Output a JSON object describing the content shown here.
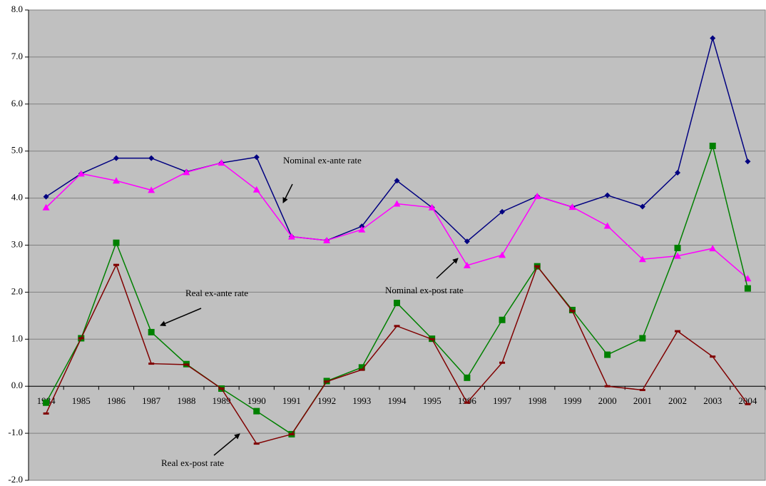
{
  "chart_data": {
    "type": "line",
    "categories": [
      "1984",
      "1985",
      "1986",
      "1987",
      "1988",
      "1989",
      "1990",
      "1991",
      "1992",
      "1993",
      "1994",
      "1995",
      "1996",
      "1997",
      "1998",
      "1999",
      "2000",
      "2001",
      "2002",
      "2003",
      "2004"
    ],
    "ylim": [
      -2,
      8
    ],
    "yticks": [
      {
        "value": -2,
        "label": "-2.0"
      },
      {
        "value": -1,
        "label": "-1.0"
      },
      {
        "value": 0,
        "label": "0.0"
      },
      {
        "value": 1,
        "label": "1.0"
      },
      {
        "value": 2,
        "label": "2.0"
      },
      {
        "value": 3,
        "label": "3.0"
      },
      {
        "value": 4,
        "label": "4.0"
      },
      {
        "value": 5,
        "label": "5.0"
      },
      {
        "value": 6,
        "label": "6.0"
      },
      {
        "value": 7,
        "label": "7.0"
      },
      {
        "value": 8,
        "label": "8.0"
      }
    ],
    "grid": true,
    "background": "#c0c0c0",
    "series": [
      {
        "name": "Nominal ex-ante rate",
        "color": "#000080",
        "marker": "diamond",
        "values": [
          4.03,
          4.52,
          4.85,
          4.85,
          4.56,
          4.75,
          4.87,
          3.18,
          3.1,
          3.4,
          4.37,
          3.8,
          3.08,
          3.71,
          4.04,
          3.81,
          4.06,
          3.82,
          4.54,
          7.4,
          4.78
        ]
      },
      {
        "name": "Nominal ex-post rate",
        "color": "#ff00ff",
        "marker": "triangle",
        "values": [
          3.8,
          4.52,
          4.37,
          4.17,
          4.55,
          4.75,
          4.18,
          3.18,
          3.1,
          3.33,
          3.88,
          3.8,
          2.57,
          2.79,
          4.04,
          3.81,
          3.41,
          2.7,
          2.77,
          2.93,
          2.29
        ]
      },
      {
        "name": "Real ex-ante rate",
        "color": "#008000",
        "marker": "square",
        "values": [
          -0.35,
          1.02,
          3.05,
          1.15,
          0.47,
          -0.05,
          -0.53,
          -1.02,
          0.11,
          0.4,
          1.77,
          1.01,
          0.18,
          1.41,
          2.55,
          1.62,
          0.67,
          1.02,
          2.94,
          5.11,
          2.08
        ]
      },
      {
        "name": "Real ex-post rate",
        "color": "#800000",
        "marker": "dash",
        "values": [
          -0.58,
          1.02,
          2.58,
          0.48,
          0.46,
          -0.05,
          -1.22,
          -1.02,
          0.1,
          0.35,
          1.28,
          1.0,
          -0.35,
          0.5,
          2.55,
          1.6,
          0.0,
          -0.08,
          1.17,
          0.63,
          -0.38
        ]
      }
    ]
  }
}
